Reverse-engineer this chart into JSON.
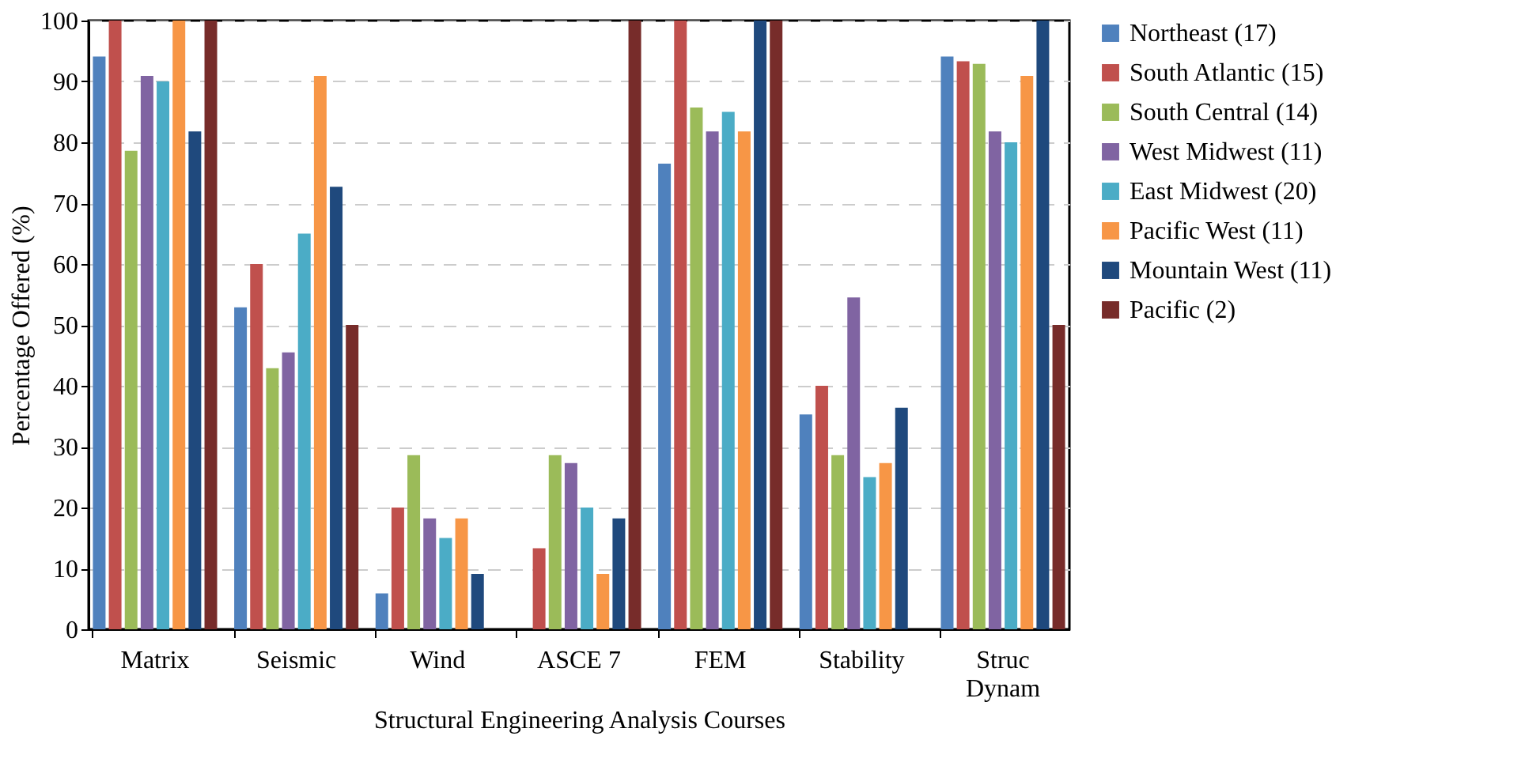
{
  "chart_data": {
    "type": "bar",
    "xlabel": "Structural Engineering Analysis  Courses",
    "ylabel": "Percentage Offered (%)",
    "categories": [
      "Matrix",
      "Seismic",
      "Wind",
      "ASCE 7",
      "FEM",
      "Stability",
      "Struc\nDynam"
    ],
    "series": [
      {
        "name": "Northeast (17)",
        "color": "#4f81bd",
        "values": [
          94.1,
          52.9,
          5.9,
          0,
          76.5,
          35.3,
          94.1
        ]
      },
      {
        "name": "South Atlantic (15)",
        "color": "#c0504d",
        "values": [
          100,
          60,
          20,
          13.3,
          100,
          40,
          93.3
        ]
      },
      {
        "name": "South Central (14)",
        "color": "#9bbb59",
        "values": [
          78.6,
          42.9,
          28.6,
          28.6,
          85.7,
          28.6,
          92.9
        ]
      },
      {
        "name": "West Midwest (11)",
        "color": "#8064a2",
        "values": [
          90.9,
          45.5,
          18.2,
          27.3,
          81.8,
          54.5,
          81.8
        ]
      },
      {
        "name": "East Midwest (20)",
        "color": "#4bacc6",
        "values": [
          90,
          65,
          15,
          20,
          85,
          25,
          80
        ]
      },
      {
        "name": "Pacific West (11)",
        "color": "#f79646",
        "values": [
          100,
          90.9,
          18.2,
          9.1,
          81.8,
          27.3,
          90.9
        ]
      },
      {
        "name": "Mountain West (11)",
        "color": "#1f497d",
        "values": [
          81.8,
          72.7,
          9.1,
          18.2,
          100,
          36.4,
          100
        ]
      },
      {
        "name": "Pacific (2)",
        "color": "#772c2a",
        "values": [
          100,
          50,
          0,
          100,
          100,
          0,
          50
        ]
      }
    ],
    "ylim": [
      0,
      100
    ],
    "yticks": [
      0,
      10,
      20,
      30,
      40,
      50,
      60,
      70,
      80,
      90,
      100
    ],
    "grid": "y",
    "legend": "right"
  }
}
